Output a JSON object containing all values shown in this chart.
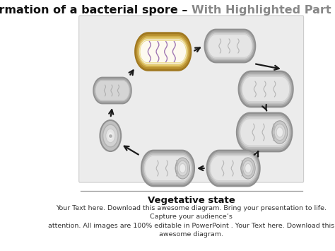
{
  "title_bold": "Formation of a bacterial spore – ",
  "title_gray": "With Highlighted Part",
  "subtitle": "Vegetative state",
  "body_text": "Your Text here. Download this awesome diagram. Bring your presentation to life. Capture your audience’s\nattention. All images are 100% editable in PowerPoint . Your Text here. Download this awesome diagram.",
  "bg_color": "#ececec",
  "white_bg": "#ffffff",
  "title_fontsize": 11.5,
  "subtitle_fontsize": 9.5,
  "body_fontsize": 6.8,
  "arrow_color": "#1a1a1a",
  "separator_color": "#999999",
  "highlight_outer1": "#c8a030",
  "highlight_outer2": "#d4b850",
  "highlight_outer3": "#e8d070",
  "highlight_inner": "#f5edd0",
  "gray_outer1": "#b0b0b0",
  "gray_outer2": "#c5c5c5",
  "gray_outer3": "#d8d8d8",
  "gray_inner": "#e8e8e8",
  "spore_c1": "#c0c0c0",
  "spore_c2": "#d5d5d5",
  "spore_c3": "#e5e5e5",
  "spore_c4": "#f0f0f0"
}
